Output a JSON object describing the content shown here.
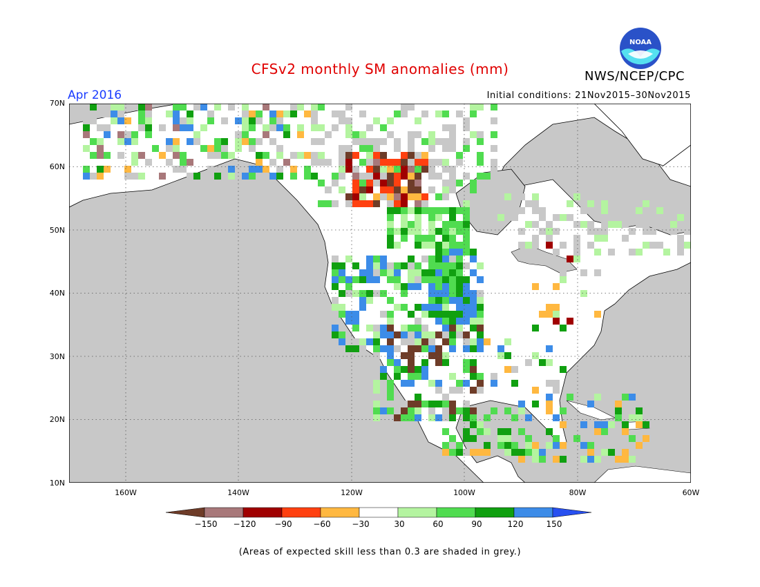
{
  "header": {
    "title": "CFSv2 monthly SM anomalies (mm)",
    "agency": "NWS/NCEP/CPC",
    "logo_text": "NOAA",
    "valid_month": "Apr 2016",
    "initial_conditions": "Initial conditions: 21Nov2015–30Nov2015"
  },
  "map": {
    "lat_labels": [
      "70N",
      "60N",
      "50N",
      "40N",
      "30N",
      "20N",
      "10N"
    ],
    "lon_labels": [
      "160W",
      "140W",
      "120W",
      "100W",
      "80W",
      "60W"
    ],
    "colors": {
      "ocean": "#c8c8c8",
      "land": "#ffffff",
      "low_skill": "#c8c8c8",
      "coastline": "#000000"
    }
  },
  "colorbar": {
    "labels": [
      "−150",
      "−120",
      "−90",
      "−60",
      "−30",
      "30",
      "60",
      "90",
      "120",
      "150"
    ],
    "colors": [
      "#6e3c28",
      "#a8787a",
      "#a00000",
      "#ff4010",
      "#ffb840",
      "#ffffff",
      "#b4f4a0",
      "#50dc50",
      "#10a010",
      "#3c8ce8",
      "#2850f0"
    ]
  },
  "footnote": "(Areas of expected skill less than 0.3 are shaded in grey.)"
}
